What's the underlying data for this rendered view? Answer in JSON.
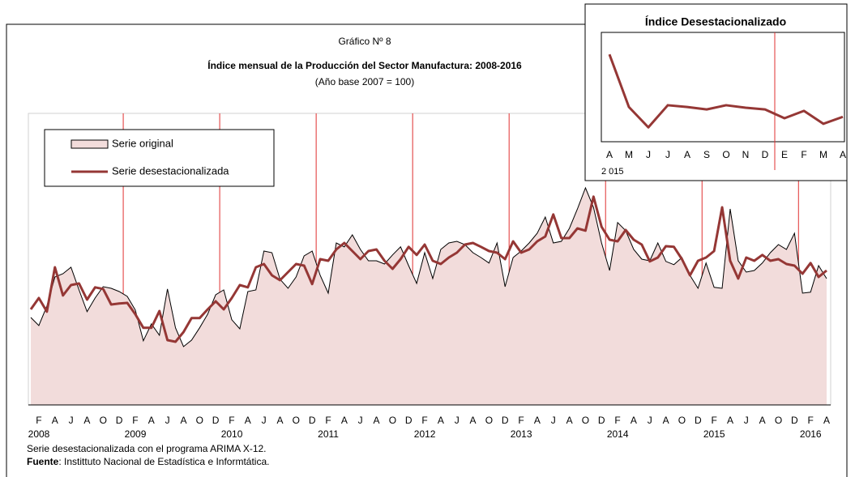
{
  "chart_data": [
    {
      "type": "line",
      "label": "Gráfico Nº 8",
      "title": "Índice mensual de la Producción del Sector Manufactura: 2008-2016",
      "subtitle": "(Año base 2007 = 100)",
      "categories": [
        null,
        "F",
        null,
        "A",
        null,
        "J",
        null,
        "A",
        null,
        "O",
        null,
        "D",
        null,
        "F",
        null,
        "A",
        null,
        "J",
        null,
        "A",
        null,
        "O",
        null,
        "D",
        null,
        "F",
        null,
        "A",
        null,
        "J",
        null,
        "A",
        null,
        "O",
        null,
        "D",
        null,
        "F",
        null,
        "A",
        null,
        "J",
        null,
        "A",
        null,
        "O",
        null,
        "D",
        null,
        "F",
        null,
        "A",
        null,
        "J",
        null,
        "A",
        null,
        "O",
        null,
        "D",
        null,
        "F",
        null,
        "A",
        null,
        "J",
        null,
        "A",
        null,
        "O",
        null,
        "D",
        null,
        "F",
        null,
        "A",
        null,
        "J",
        null,
        "A",
        null,
        "O",
        null,
        "D",
        null,
        "F",
        null,
        "A",
        null,
        "J",
        null,
        "A",
        null,
        "O",
        null,
        "D",
        null,
        "F",
        null,
        "A"
      ],
      "year_labels": [
        "2008",
        "2009",
        "2010",
        "2011",
        "2012",
        "2013",
        "2014",
        "2015",
        "2016"
      ],
      "ylim": [
        60,
        150
      ],
      "series": [
        {
          "name": "Serie original",
          "color": "#f2dcdb",
          "area": true,
          "values": [
            87,
            84.5,
            90.5,
            99.5,
            100.5,
            102.5,
            95.5,
            88.8,
            93,
            96.5,
            96,
            95,
            93.5,
            89.3,
            79.8,
            85,
            81.5,
            95.8,
            83.8,
            78,
            80,
            83.8,
            88,
            94,
            95.5,
            86.3,
            83.5,
            95,
            95.5,
            107.5,
            107,
            98.8,
            96,
            99.5,
            106,
            107.5,
            100,
            94.5,
            110,
            108.8,
            112.5,
            108,
            104.5,
            104.5,
            103.5,
            106.3,
            108.8,
            103,
            97.5,
            107,
            99,
            108,
            110,
            110.5,
            109.5,
            107,
            105.5,
            103.8,
            110,
            96.5,
            105.5,
            107.5,
            110,
            113,
            118,
            110,
            110.5,
            114.5,
            120.5,
            127,
            121,
            110,
            101.5,
            116.3,
            113.8,
            108,
            105,
            104.5,
            110,
            104.3,
            103.3,
            105.5,
            100,
            96,
            103.8,
            96.3,
            96,
            120.5,
            104.5,
            101,
            101.5,
            103.8,
            107,
            109.5,
            108,
            113,
            94.5,
            94.8,
            103,
            99
          ]
        },
        {
          "name": "Serie desestacionalizada",
          "color": "#953735",
          "values": [
            89.5,
            93,
            88.8,
            102.5,
            93.8,
            97,
            97.5,
            92.5,
            96.3,
            95.8,
            91,
            91.3,
            91.5,
            88,
            83.8,
            83.8,
            89,
            80,
            79.5,
            82.5,
            86.8,
            86.8,
            89.5,
            92,
            89.5,
            93,
            97,
            96.3,
            102.5,
            103.5,
            100,
            98.5,
            101,
            103.5,
            103,
            97.3,
            105,
            104.5,
            108,
            110,
            107.5,
            105,
            107.5,
            108,
            104.5,
            102,
            105,
            108.8,
            106.3,
            109.5,
            104.5,
            103.5,
            105.5,
            107,
            109.5,
            110,
            108.8,
            107.5,
            107,
            105,
            110.5,
            107,
            108,
            110.5,
            112,
            118.8,
            111.5,
            111.5,
            114.5,
            113.8,
            124.3,
            115,
            111,
            110.5,
            114,
            111,
            109.5,
            104.3,
            105.5,
            109,
            108.8,
            105,
            100,
            104.5,
            105.5,
            107.5,
            121,
            104.5,
            99,
            105.5,
            104.5,
            106.3,
            104.5,
            105,
            103.5,
            103,
            100.5,
            103.8,
            99.5,
            101.5
          ]
        }
      ],
      "notes": [
        "Serie desestacionalizada con el programa ARIMA X-12."
      ],
      "source_label": "Fuente",
      "source": ": Instittuto Nacional de Estadística e Informtática."
    },
    {
      "type": "line",
      "title": "Índice Desestacionalizado",
      "categories": [
        "A",
        "M",
        "J",
        "J",
        "A",
        "S",
        "O",
        "N",
        "D",
        "E",
        "F",
        "M",
        "A"
      ],
      "year_label": "2 015",
      "ylim": [
        95,
        125
      ],
      "series": [
        {
          "color": "#953735",
          "values": [
            119.9,
            104.9,
            99.1,
            105.4,
            104.9,
            104.2,
            105.4,
            104.7,
            104.2,
            101.7,
            103.8,
            100.1,
            102.1
          ]
        }
      ]
    }
  ]
}
